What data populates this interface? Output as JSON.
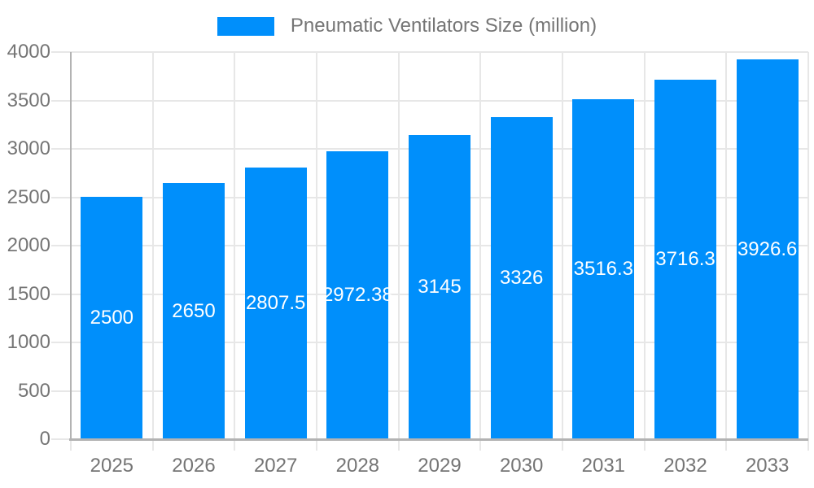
{
  "legend": {
    "label": "Pneumatic Ventilators Size (million)"
  },
  "colors": {
    "bar": "#008ffb",
    "grid": "#e7e7e7",
    "axis": "#b3b3b3",
    "axis_text": "#757575",
    "value_text": "#ffffff",
    "background": "#ffffff"
  },
  "chart_data": {
    "type": "bar",
    "title": "Pneumatic Ventilators Size (million)",
    "categories": [
      "2025",
      "2026",
      "2027",
      "2028",
      "2029",
      "2030",
      "2031",
      "2032",
      "2033"
    ],
    "values": [
      2500,
      2650,
      2807.5,
      2972.38,
      3145,
      3326,
      3516.3,
      3716.3,
      3926.6
    ],
    "series": [
      {
        "name": "Pneumatic Ventilators Size (million)",
        "values": [
          2500,
          2650,
          2807.5,
          2972.38,
          3145,
          3326,
          3516.3,
          3716.3,
          3926.6
        ]
      }
    ],
    "xlabel": "",
    "ylabel": "",
    "ylim": [
      0,
      4000
    ],
    "yticks": [
      0,
      500,
      1000,
      1500,
      2000,
      2500,
      3000,
      3500,
      4000
    ],
    "grid": true,
    "legend_position": "top",
    "value_label_position": "inside-center"
  }
}
